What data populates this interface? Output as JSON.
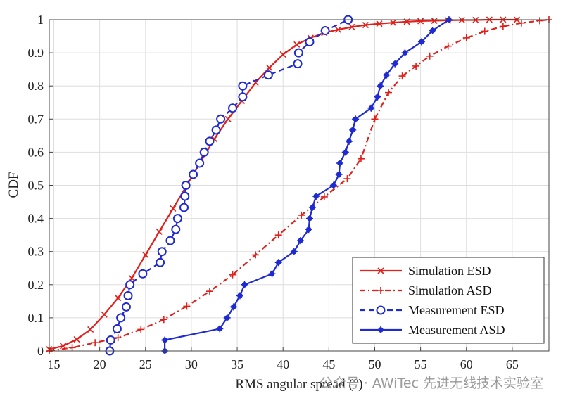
{
  "chart_data": {
    "type": "line",
    "xlabel": "RMS angular spread (°)",
    "ylabel": "CDF",
    "xlim": [
      14.5,
      69
    ],
    "ylim": [
      0,
      1
    ],
    "xticks": [
      15,
      20,
      25,
      30,
      35,
      40,
      45,
      50,
      55,
      60,
      65
    ],
    "yticks": [
      0,
      0.1,
      0.2,
      0.3,
      0.4,
      0.5,
      0.6,
      0.7,
      0.8,
      0.9,
      1
    ],
    "grid": true,
    "legend_position": "bottom-right",
    "series": [
      {
        "name": "Simulation ESD",
        "color": "#e0201b",
        "style": "solid",
        "marker": "x",
        "x": [
          14.5,
          16,
          17.5,
          19,
          20.5,
          22,
          23.5,
          25,
          26.5,
          28,
          29.5,
          31,
          32.5,
          34,
          35.5,
          37,
          38.5,
          40,
          41.5,
          43,
          44.5,
          46,
          47.5,
          49,
          50.5,
          52,
          53.5,
          55,
          56.5,
          58,
          59.5,
          61,
          62.5,
          64,
          65.5
        ],
        "y": [
          0.005,
          0.015,
          0.035,
          0.065,
          0.11,
          0.16,
          0.22,
          0.29,
          0.36,
          0.43,
          0.5,
          0.57,
          0.64,
          0.7,
          0.755,
          0.81,
          0.855,
          0.895,
          0.925,
          0.945,
          0.96,
          0.97,
          0.978,
          0.984,
          0.988,
          0.991,
          0.994,
          0.996,
          0.997,
          0.998,
          0.999,
          0.999,
          1.0,
          1.0,
          1.0
        ]
      },
      {
        "name": "Simulation ASD",
        "color": "#e0201b",
        "style": "dashdot",
        "marker": "+",
        "x": [
          14.5,
          17,
          19.5,
          22,
          24.5,
          27,
          29.5,
          32,
          34.5,
          37,
          39.5,
          42,
          44.5,
          47,
          48.5,
          50,
          51.5,
          53,
          54.5,
          56,
          58,
          60,
          62,
          64,
          66,
          68,
          69
        ],
        "y": [
          0.0,
          0.01,
          0.025,
          0.04,
          0.065,
          0.095,
          0.135,
          0.18,
          0.23,
          0.29,
          0.35,
          0.41,
          0.465,
          0.52,
          0.58,
          0.7,
          0.78,
          0.83,
          0.86,
          0.89,
          0.92,
          0.945,
          0.965,
          0.98,
          0.99,
          0.997,
          1.0
        ]
      },
      {
        "name": "Measurement ESD",
        "color": "#1f2bd0",
        "style": "dashed",
        "marker": "o",
        "x": [
          21.1,
          21.2,
          21.9,
          22.3,
          22.9,
          23.1,
          23.3,
          24.7,
          26.6,
          26.8,
          27.7,
          28.3,
          28.5,
          29.2,
          29.3,
          29.4,
          30.2,
          30.9,
          31.4,
          32,
          32.7,
          33.2,
          34.5,
          35.6,
          35.6,
          38.4,
          41.6,
          41.7,
          42.9,
          44.6,
          47.1
        ],
        "y": [
          0.0,
          0.033,
          0.067,
          0.1,
          0.133,
          0.167,
          0.2,
          0.233,
          0.267,
          0.3,
          0.333,
          0.367,
          0.4,
          0.433,
          0.467,
          0.5,
          0.533,
          0.567,
          0.6,
          0.633,
          0.667,
          0.7,
          0.733,
          0.767,
          0.8,
          0.833,
          0.867,
          0.9,
          0.933,
          0.967,
          1.0
        ]
      },
      {
        "name": "Measurement ASD",
        "color": "#1f2bd0",
        "style": "solid",
        "marker": "*",
        "x": [
          27.1,
          27.1,
          33.1,
          33.9,
          34.6,
          35.3,
          35.8,
          38.8,
          39.5,
          41.2,
          41.9,
          42.8,
          42.9,
          43.2,
          43.6,
          45.5,
          46.1,
          46.2,
          46.8,
          47.2,
          47.6,
          47.9,
          49.6,
          50.3,
          50.6,
          51.3,
          52.2,
          53.3,
          55.1,
          56.3,
          58.1
        ],
        "y": [
          0.0,
          0.033,
          0.067,
          0.1,
          0.133,
          0.167,
          0.2,
          0.233,
          0.267,
          0.3,
          0.333,
          0.367,
          0.4,
          0.433,
          0.467,
          0.5,
          0.533,
          0.567,
          0.6,
          0.633,
          0.667,
          0.7,
          0.733,
          0.767,
          0.8,
          0.833,
          0.867,
          0.9,
          0.933,
          0.967,
          1.0
        ]
      }
    ]
  },
  "watermark": "公众号 · AWiTec 先进无线技术实验室"
}
